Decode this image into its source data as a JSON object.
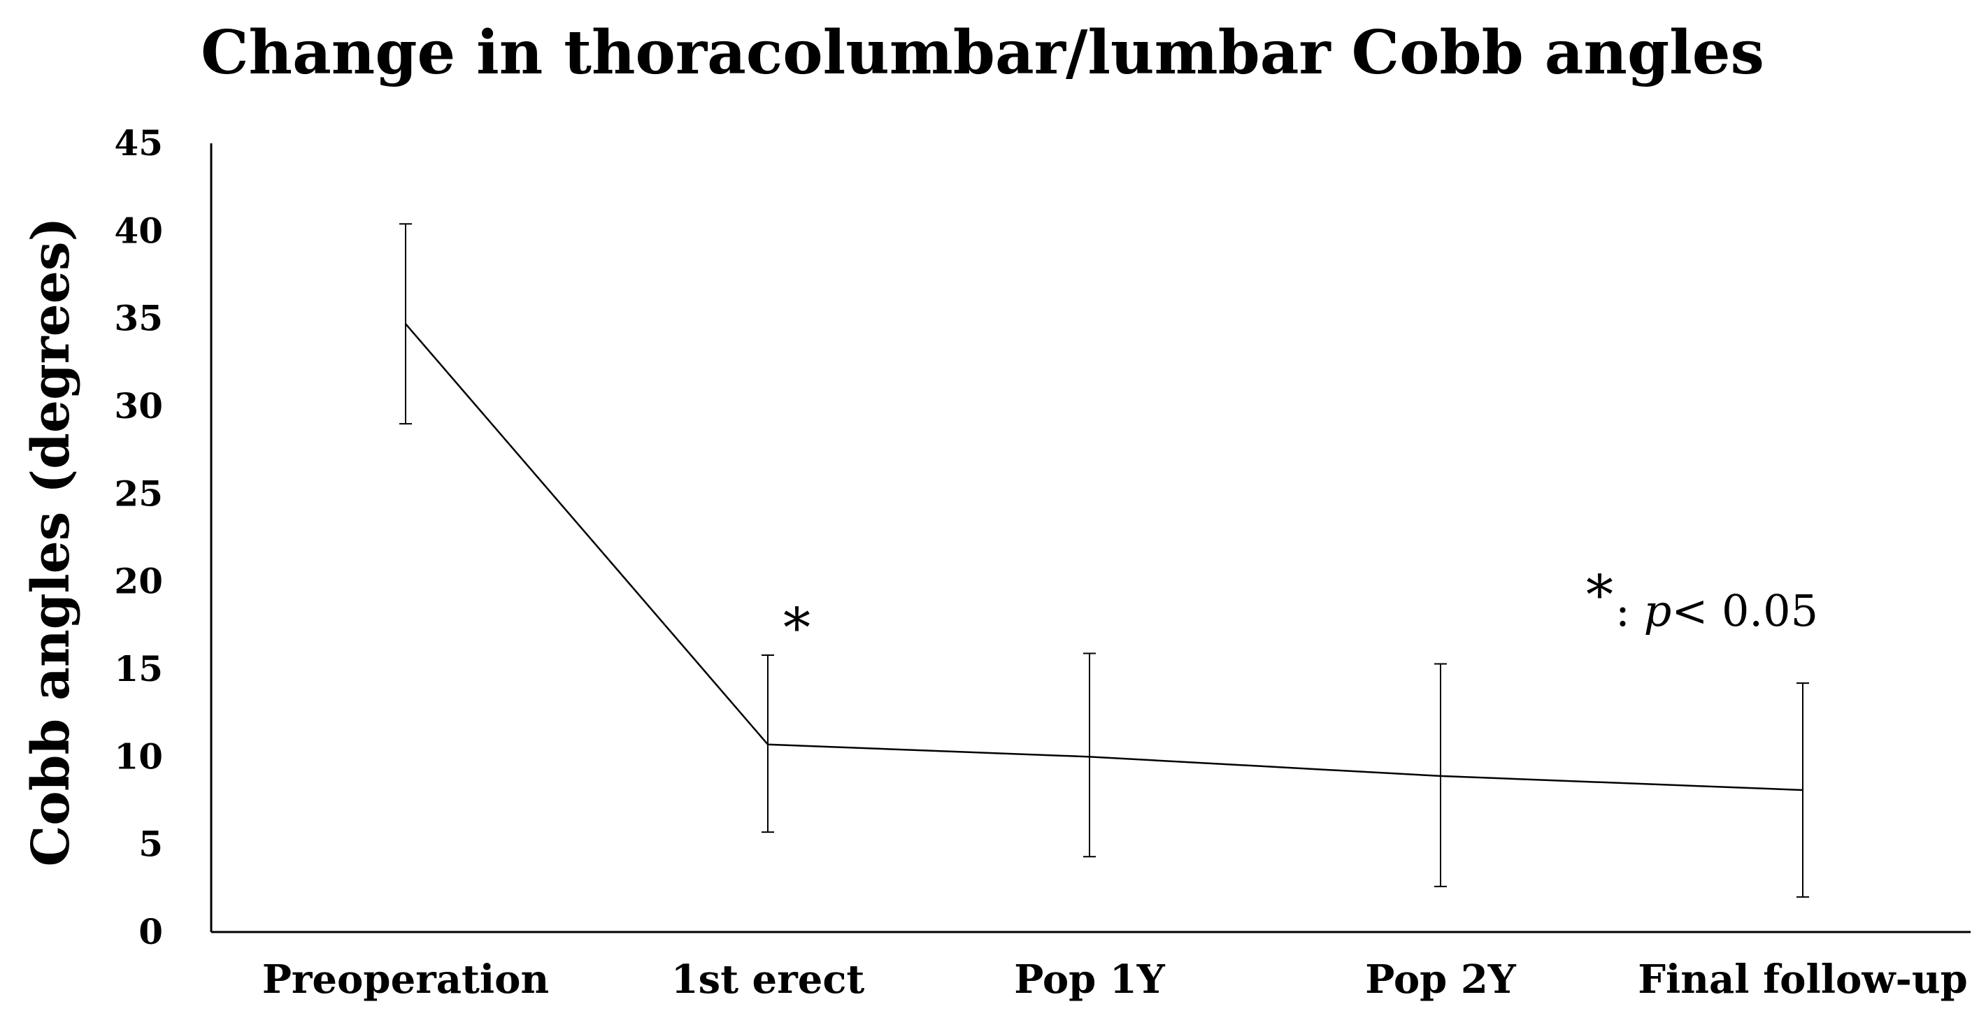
{
  "chart_data": {
    "type": "line",
    "title": "Change in thoracolumbar/lumbar Cobb angles",
    "xlabel": "",
    "ylabel": "Cobb angles (degrees)",
    "ylim": [
      0,
      45
    ],
    "yticks": [
      0,
      5,
      10,
      15,
      20,
      25,
      30,
      35,
      40,
      45
    ],
    "categories": [
      "Preoperation",
      "1st erect",
      "Pop 1Y",
      "Pop 2Y",
      "Final follow-up"
    ],
    "series": [
      {
        "values": [
          34.7,
          10.7,
          10.0,
          8.9,
          8.1
        ],
        "error_upper": [
          40.4,
          15.8,
          15.9,
          15.3,
          14.2
        ],
        "error_lower": [
          29.0,
          5.7,
          4.3,
          2.6,
          2.0
        ]
      }
    ],
    "grid": false,
    "significance_marks": [
      {
        "category": "1st erect",
        "symbol": "*"
      }
    ],
    "legend_note": {
      "symbol": "*",
      "text_prefix": ": ",
      "text_p": "p",
      "text_suffix": "< 0.05"
    }
  }
}
